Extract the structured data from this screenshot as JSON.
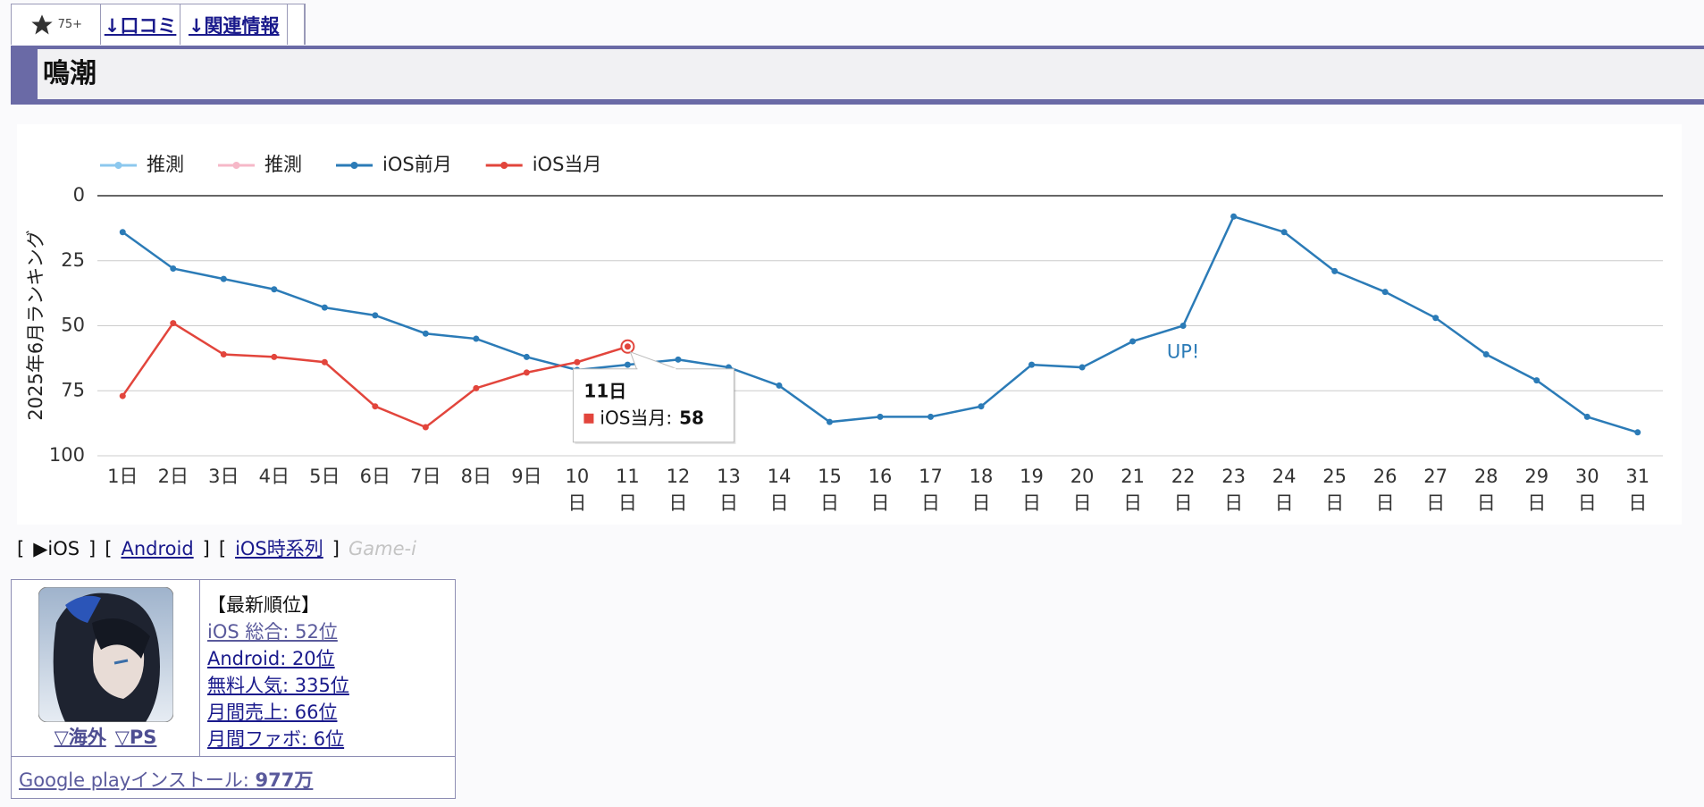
{
  "tabs": {
    "rating": "75+",
    "links": [
      "↓口コミ",
      "↓関連情報"
    ]
  },
  "header": {
    "title": "鳴潮"
  },
  "chart_data": {
    "type": "line",
    "y_label": "2025年6月ランキング",
    "categories": [
      "1日",
      "2日",
      "3日",
      "4日",
      "5日",
      "6日",
      "7日",
      "8日",
      "9日",
      "10日",
      "11日",
      "12日",
      "13日",
      "14日",
      "15日",
      "16日",
      "17日",
      "18日",
      "19日",
      "20日",
      "21日",
      "22日",
      "23日",
      "24日",
      "25日",
      "26日",
      "27日",
      "28日",
      "29日",
      "30日",
      "31日"
    ],
    "series": [
      {
        "name": "推測",
        "color": "#8cc8ee",
        "values": [
          null,
          null,
          null,
          null,
          null,
          null,
          null,
          null,
          null,
          null,
          null,
          null,
          null,
          null,
          null,
          null,
          null,
          null,
          null,
          null,
          null,
          null,
          null,
          null,
          null,
          null,
          null,
          null,
          null,
          null,
          null
        ]
      },
      {
        "name": "推測",
        "color": "#f6b8c8",
        "values": [
          null,
          null,
          null,
          null,
          null,
          null,
          null,
          null,
          null,
          null,
          null,
          null,
          null,
          null,
          null,
          null,
          null,
          null,
          null,
          null,
          null,
          null,
          null,
          null,
          null,
          null,
          null,
          null,
          null,
          null,
          null
        ]
      },
      {
        "name": "iOS前月",
        "color": "#2b7bb7",
        "values": [
          14,
          28,
          32,
          36,
          43,
          46,
          53,
          55,
          62,
          67,
          65,
          63,
          66,
          73,
          87,
          85,
          85,
          81,
          65,
          66,
          56,
          50,
          8,
          14,
          29,
          37,
          47,
          61,
          71,
          85,
          91
        ]
      },
      {
        "name": "iOS当月",
        "color": "#e2453c",
        "values": [
          77,
          49,
          61,
          62,
          64,
          81,
          89,
          74,
          68,
          64,
          58,
          null,
          null,
          null,
          null,
          null,
          null,
          null,
          null,
          null,
          null,
          null,
          null,
          null,
          null,
          null,
          null,
          null,
          null,
          null,
          null
        ]
      }
    ],
    "ylim": [
      0,
      100
    ],
    "yticks": [
      0,
      25,
      50,
      75,
      100
    ],
    "y_reversed": true,
    "grid": true,
    "legend": "top-left",
    "tooltip": {
      "title": "11日",
      "label": "iOS当月:",
      "value": 58
    },
    "annotations": [
      {
        "text": "UP!",
        "category": "22日"
      }
    ]
  },
  "platform_links": [
    "[",
    "▶iOS",
    "]",
    "[",
    "Android",
    "]",
    "[",
    "iOS時系列",
    "]",
    "Game-i"
  ],
  "info": {
    "regions": [
      "▽海外",
      "▽PS"
    ],
    "heading": "【最新順位】",
    "ranks": [
      "iOS 総合: 52位",
      "Android: 20位",
      "無料人気: 335位",
      "月間売上: 66位",
      "月間ファボ: 6位"
    ],
    "install": {
      "label": "Google playインストール:",
      "value": "977万"
    }
  }
}
